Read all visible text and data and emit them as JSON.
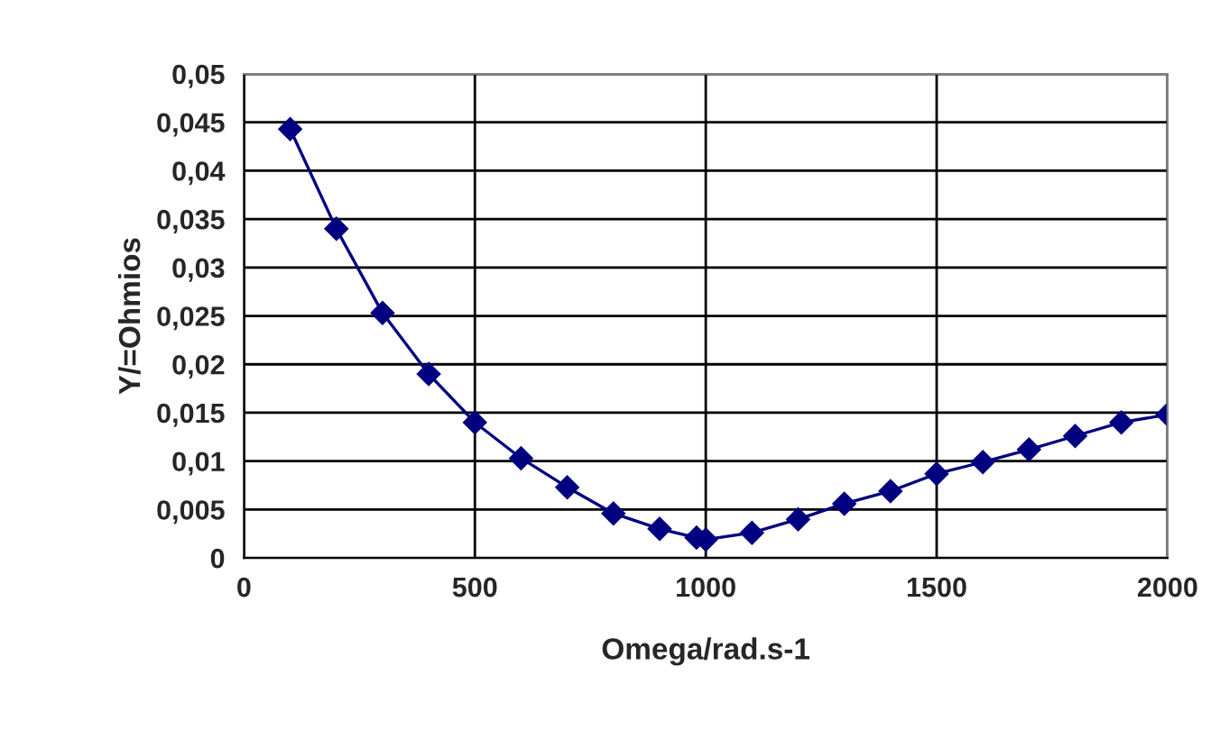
{
  "chart_data": {
    "type": "line",
    "xlabel": "Omega/rad.s-1",
    "ylabel": "Y/=Ohmios",
    "x": [
      100,
      200,
      300,
      400,
      500,
      600,
      700,
      800,
      900,
      980,
      1000,
      1100,
      1200,
      1300,
      1400,
      1500,
      1600,
      1700,
      1800,
      1900,
      2000
    ],
    "series": [
      {
        "color": "#000080",
        "values": [
          0.0443,
          0.034,
          0.0253,
          0.019,
          0.014,
          0.0103,
          0.0073,
          0.0046,
          0.003,
          0.0021,
          0.0019,
          0.0026,
          0.004,
          0.0056,
          0.0069,
          0.0087,
          0.0099,
          0.0112,
          0.0126,
          0.014,
          0.0148
        ]
      }
    ],
    "xlim": [
      0,
      2000
    ],
    "xticks": [
      0,
      500,
      1000,
      1500,
      2000
    ],
    "ylim": [
      0,
      0.05
    ],
    "yticks": [
      {
        "value": 0,
        "label": "0"
      },
      {
        "value": 0.005,
        "label": "0,005"
      },
      {
        "value": 0.01,
        "label": "0,01"
      },
      {
        "value": 0.015,
        "label": "0,015"
      },
      {
        "value": 0.02,
        "label": "0,02"
      },
      {
        "value": 0.025,
        "label": "0,025"
      },
      {
        "value": 0.03,
        "label": "0,03"
      },
      {
        "value": 0.035,
        "label": "0,035"
      },
      {
        "value": 0.04,
        "label": "0,04"
      },
      {
        "value": 0.045,
        "label": "0,045"
      },
      {
        "value": 0.05,
        "label": "0,05"
      }
    ],
    "grid": true,
    "marker": "diamond",
    "line_style": "solid",
    "legend": false
  }
}
